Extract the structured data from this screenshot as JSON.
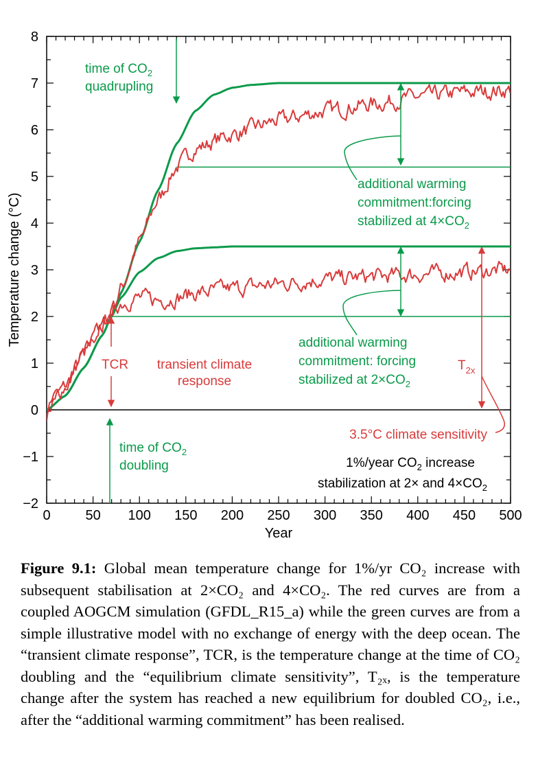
{
  "chart_data": {
    "type": "line",
    "xlabel": "Year",
    "ylabel": "Temperature change (°C)",
    "xlim": [
      0,
      500
    ],
    "ylim": [
      -2,
      8
    ],
    "xticks": [
      0,
      50,
      100,
      150,
      200,
      250,
      300,
      350,
      400,
      450,
      500
    ],
    "yticks": [
      -2,
      -1,
      0,
      1,
      2,
      3,
      4,
      5,
      6,
      7,
      8
    ],
    "ytick_labels": [
      "−2",
      "−1",
      "0",
      "1",
      "2",
      "3",
      "4",
      "5",
      "6",
      "7",
      "8"
    ],
    "series": [
      {
        "name": "Simple model, stabilized at 4×CO2",
        "color": "#0a9a4a",
        "x": [
          0,
          20,
          40,
          60,
          70,
          80,
          100,
          120,
          140,
          160,
          180,
          200,
          220,
          250,
          300,
          400,
          500
        ],
        "y": [
          0,
          0.3,
          0.9,
          1.6,
          2.0,
          2.5,
          3.6,
          4.7,
          5.7,
          6.4,
          6.75,
          6.9,
          6.96,
          7.0,
          7.0,
          7.0,
          7.0
        ]
      },
      {
        "name": "Simple model, stabilized at 2×CO2",
        "color": "#0a9a4a",
        "x": [
          0,
          20,
          40,
          60,
          70,
          80,
          100,
          120,
          140,
          160,
          180,
          200,
          250,
          300,
          400,
          500
        ],
        "y": [
          0,
          0.3,
          0.9,
          1.6,
          2.0,
          2.4,
          2.95,
          3.25,
          3.4,
          3.46,
          3.48,
          3.5,
          3.5,
          3.5,
          3.5,
          3.5
        ]
      },
      {
        "name": "GFDL_R15_a, stabilized at 4×CO2",
        "color": "#d83a3a",
        "x": [
          0,
          10,
          20,
          40,
          60,
          70,
          80,
          100,
          120,
          140,
          160,
          200,
          250,
          300,
          350,
          400,
          450,
          500
        ],
        "y": [
          -0.1,
          0.3,
          0.5,
          1.2,
          1.8,
          2.1,
          2.6,
          3.6,
          4.5,
          5.2,
          5.6,
          5.9,
          6.2,
          6.4,
          6.55,
          6.7,
          6.8,
          6.85
        ]
      },
      {
        "name": "GFDL_R15_a, stabilized at 2×CO2",
        "color": "#d83a3a",
        "x": [
          0,
          10,
          20,
          40,
          60,
          70,
          80,
          100,
          120,
          140,
          160,
          200,
          250,
          300,
          350,
          400,
          450,
          500
        ],
        "y": [
          -0.1,
          0.3,
          0.5,
          1.2,
          1.8,
          2.1,
          2.3,
          2.4,
          2.35,
          2.4,
          2.5,
          2.6,
          2.7,
          2.8,
          2.85,
          2.9,
          2.95,
          3.0
        ]
      }
    ],
    "reference_lines": [
      {
        "name": "zero line",
        "y": 0,
        "color": "#000000"
      },
      {
        "name": "transient 2×CO2 level",
        "y": 2.0,
        "x_range": [
          70,
          500
        ],
        "color": "#0a9a4a"
      },
      {
        "name": "transient 4×CO2 level",
        "y": 5.2,
        "x_range": [
          140,
          500
        ],
        "color": "#0a9a4a"
      }
    ],
    "annotations": {
      "quadrupling_l1": "time of CO",
      "quadrupling_sub": "2",
      "quadrupling_l2": "quadrupling",
      "doubling_l1": "time of CO",
      "doubling_sub": "2",
      "doubling_l2": "doubling",
      "tcr": "TCR",
      "tcr_desc_l1": "transient climate",
      "tcr_desc_l2": "response",
      "commit4_l1": "additional warming",
      "commit4_l2": "commitment:forcing",
      "commit4_l3a": "stabilized at 4×CO",
      "commit4_l3sub": "2",
      "commit2_l1": "additional warming",
      "commit2_l2": "commitment: forcing",
      "commit2_l3a": "stabilized at 2×CO",
      "commit2_l3sub": "2",
      "t2x": "T",
      "t2x_sub": "2x",
      "sensitivity": "3.5°C climate sensitivity",
      "scenario_l1a": "1%/year CO",
      "scenario_l1sub": "2",
      "scenario_l1b": " increase",
      "scenario_l2a": "stabilization at 2× and 4×CO",
      "scenario_l2sub": "2"
    }
  },
  "caption": {
    "label": "Figure 9.1:",
    "text": "Global mean temperature change for 1%/yr CO₂ increase with subsequent stabilisation at 2×CO₂ and 4×CO₂. The red curves are from a coupled AOGCM simulation (GFDL_R15_a) while the green curves are from a simple illustrative model with no exchange of energy with the deep ocean. The “transient climate response”, TCR, is the temperature change at the time of CO₂ doubling and the “equilibrium climate sensitivity”, T₂ₓ, is the temperature change after the system has reached a new equilibrium for doubled CO₂, i.e., after the “additional warming commitment” has been realised."
  },
  "colors": {
    "green": "#0a9a4a",
    "red": "#d83a3a",
    "axis": "#000000"
  }
}
